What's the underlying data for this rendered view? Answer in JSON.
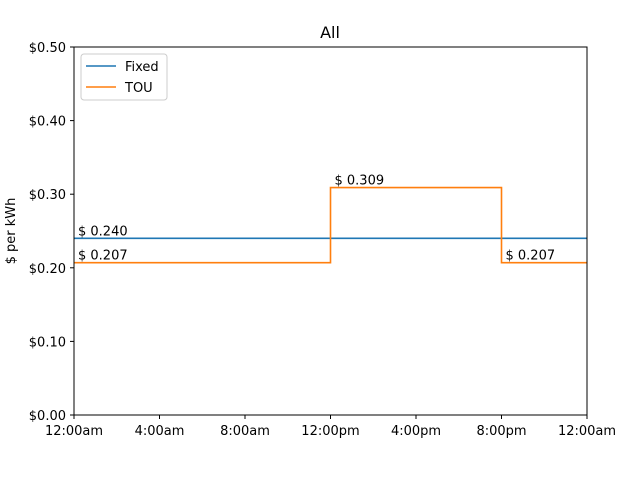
{
  "chart_data": {
    "type": "line",
    "title": "All",
    "xlabel": "",
    "ylabel": "$ per kWh",
    "xlim": [
      0,
      24
    ],
    "ylim": [
      0,
      0.5
    ],
    "x_ticks": [
      0,
      4,
      8,
      12,
      16,
      20,
      24
    ],
    "x_tick_labels": [
      "12:00am",
      "4:00am",
      "8:00am",
      "12:00pm",
      "4:00pm",
      "8:00pm",
      "12:00am"
    ],
    "y_ticks": [
      0,
      0.1,
      0.2,
      0.3,
      0.4,
      0.5
    ],
    "y_tick_labels": [
      "$0.00",
      "$0.10",
      "$0.20",
      "$0.30",
      "$0.40",
      "$0.50"
    ],
    "grid": false,
    "legend_position": "top-left",
    "series": [
      {
        "name": "Fixed",
        "color": "#1f77b4",
        "step": true,
        "x": [
          0,
          24
        ],
        "y": [
          0.24,
          0.24
        ]
      },
      {
        "name": "TOU",
        "color": "#ff7f0e",
        "step": true,
        "x": [
          0,
          12,
          12,
          20,
          20,
          24
        ],
        "y": [
          0.207,
          0.207,
          0.309,
          0.309,
          0.207,
          0.207
        ]
      }
    ],
    "annotations": [
      {
        "text": "$ 0.240",
        "x": 0,
        "y": 0.24
      },
      {
        "text": "$ 0.207",
        "x": 0,
        "y": 0.207
      },
      {
        "text": "$ 0.309",
        "x": 12,
        "y": 0.309
      },
      {
        "text": "$ 0.207",
        "x": 20,
        "y": 0.207
      }
    ]
  }
}
